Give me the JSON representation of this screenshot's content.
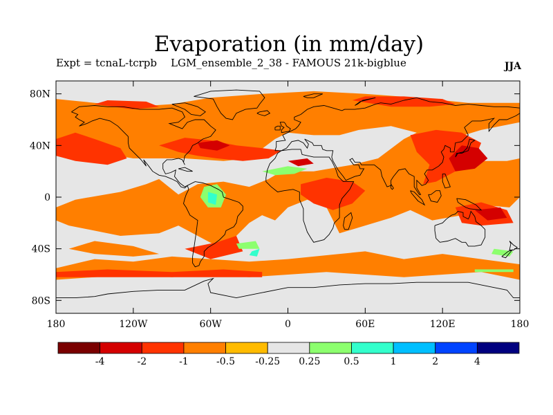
{
  "title": "Evaporation (in mm/day)",
  "experiment_label": "Expt = tcnaL-tcrpb",
  "experiment_name": "LGM_ensemble_2_38 - FAMOUS 21k-bigblue",
  "season": "JJA",
  "map": {
    "projection": "equirectangular",
    "lon_range": [
      -180,
      180
    ],
    "lat_range": [
      -90,
      90
    ],
    "lat_ticks": [
      {
        "value": 80,
        "label": "80N"
      },
      {
        "value": 40,
        "label": "40N"
      },
      {
        "value": 0,
        "label": "0"
      },
      {
        "value": -40,
        "label": "40S"
      },
      {
        "value": -80,
        "label": "80S"
      }
    ],
    "lon_ticks": [
      {
        "value": -180,
        "label": "180"
      },
      {
        "value": -120,
        "label": "120W"
      },
      {
        "value": -60,
        "label": "60W"
      },
      {
        "value": 0,
        "label": "0"
      },
      {
        "value": 60,
        "label": "60E"
      },
      {
        "value": 120,
        "label": "120E"
      },
      {
        "value": 180,
        "label": "180"
      }
    ],
    "background_color": "#e6e6e6",
    "field": [
      {
        "level": -0.5,
        "polys": [
          [
            [
              -180,
              76
            ],
            [
              -150,
              73
            ],
            [
              -120,
              70
            ],
            [
              -90,
              72
            ],
            [
              -60,
              77
            ],
            [
              -20,
              80
            ],
            [
              20,
              82
            ],
            [
              60,
              80
            ],
            [
              100,
              77
            ],
            [
              140,
              73
            ],
            [
              180,
              73
            ],
            [
              180,
              58
            ],
            [
              150,
              52
            ],
            [
              130,
              46
            ],
            [
              125,
              35
            ],
            [
              140,
              28
            ],
            [
              170,
              28
            ],
            [
              180,
              30
            ],
            [
              180,
              0
            ],
            [
              172,
              -8
            ],
            [
              150,
              -6
            ],
            [
              135,
              -14
            ],
            [
              112,
              -18
            ],
            [
              95,
              -10
            ],
            [
              80,
              -16
            ],
            [
              60,
              -22
            ],
            [
              40,
              -28
            ],
            [
              30,
              -8
            ],
            [
              15,
              -2
            ],
            [
              0,
              -8
            ],
            [
              -10,
              -18
            ],
            [
              -20,
              -14
            ],
            [
              -30,
              -20
            ],
            [
              -40,
              -30
            ],
            [
              -55,
              -38
            ],
            [
              -70,
              -30
            ],
            [
              -85,
              -22
            ],
            [
              -100,
              -28
            ],
            [
              -130,
              -30
            ],
            [
              -150,
              -26
            ],
            [
              -170,
              -22
            ],
            [
              -180,
              -18
            ],
            [
              -180,
              -8
            ],
            [
              -165,
              -2
            ],
            [
              -130,
              4
            ],
            [
              -110,
              10
            ],
            [
              -100,
              14
            ],
            [
              -85,
              2
            ],
            [
              -70,
              10
            ],
            [
              -50,
              12
            ],
            [
              -30,
              8
            ],
            [
              -15,
              14
            ],
            [
              -5,
              20
            ],
            [
              20,
              20
            ],
            [
              50,
              25
            ],
            [
              70,
              30
            ],
            [
              90,
              45
            ],
            [
              100,
              50
            ],
            [
              80,
              55
            ],
            [
              55,
              52
            ],
            [
              40,
              48
            ],
            [
              20,
              48
            ],
            [
              0,
              50
            ],
            [
              -10,
              45
            ],
            [
              -30,
              30
            ],
            [
              -50,
              28
            ],
            [
              -80,
              30
            ],
            [
              -120,
              30
            ],
            [
              -150,
              35
            ],
            [
              -180,
              40
            ]
          ]
        ]
      },
      {
        "level": -0.5,
        "polys": [
          [
            [
              -180,
              -55
            ],
            [
              -150,
              -48
            ],
            [
              -120,
              -50
            ],
            [
              -90,
              -46
            ],
            [
              -60,
              -48
            ],
            [
              -30,
              -50
            ],
            [
              0,
              -48
            ],
            [
              30,
              -45
            ],
            [
              60,
              -42
            ],
            [
              90,
              -48
            ],
            [
              120,
              -44
            ],
            [
              150,
              -48
            ],
            [
              180,
              -52
            ],
            [
              180,
              -64
            ],
            [
              150,
              -58
            ],
            [
              120,
              -60
            ],
            [
              90,
              -62
            ],
            [
              60,
              -60
            ],
            [
              30,
              -58
            ],
            [
              0,
              -60
            ],
            [
              -30,
              -62
            ],
            [
              -60,
              -60
            ],
            [
              -90,
              -62
            ],
            [
              -120,
              -60
            ],
            [
              -150,
              -62
            ],
            [
              -180,
              -64
            ]
          ]
        ]
      },
      {
        "level": -0.5,
        "polys": [
          [
            [
              -150,
              -34
            ],
            [
              -120,
              -38
            ],
            [
              -100,
              -44
            ],
            [
              -120,
              -46
            ],
            [
              -150,
              -44
            ],
            [
              -170,
              -40
            ]
          ]
        ]
      },
      {
        "level": -1,
        "polys": [
          [
            [
              -165,
              50
            ],
            [
              -150,
              45
            ],
            [
              -130,
              38
            ],
            [
              -125,
              30
            ],
            [
              -140,
              25
            ],
            [
              -165,
              28
            ],
            [
              -180,
              32
            ],
            [
              -180,
              45
            ]
          ]
        ]
      },
      {
        "level": -1,
        "polys": [
          [
            [
              -100,
              40
            ],
            [
              -80,
              46
            ],
            [
              -60,
              44
            ],
            [
              -40,
              40
            ],
            [
              -20,
              38
            ],
            [
              -5,
              36
            ],
            [
              -15,
              30
            ],
            [
              -35,
              28
            ],
            [
              -55,
              30
            ],
            [
              -70,
              32
            ],
            [
              -85,
              35
            ]
          ]
        ]
      },
      {
        "level": -1,
        "polys": [
          [
            [
              -150,
              72
            ],
            [
              -120,
              68
            ],
            [
              -100,
              70
            ],
            [
              -110,
              74
            ],
            [
              -140,
              75
            ]
          ]
        ]
      },
      {
        "level": -1,
        "polys": [
          [
            [
              50,
              75
            ],
            [
              80,
              70
            ],
            [
              110,
              70
            ],
            [
              130,
              72
            ],
            [
              120,
              76
            ],
            [
              90,
              78
            ],
            [
              60,
              78
            ]
          ]
        ]
      },
      {
        "level": -1,
        "polys": [
          [
            [
              95,
              48
            ],
            [
              115,
              52
            ],
            [
              135,
              50
            ],
            [
              150,
              42
            ],
            [
              145,
              30
            ],
            [
              130,
              20
            ],
            [
              115,
              12
            ],
            [
              105,
              10
            ],
            [
              110,
              25
            ],
            [
              100,
              35
            ]
          ]
        ]
      },
      {
        "level": -1,
        "polys": [
          [
            [
              10,
              10
            ],
            [
              30,
              15
            ],
            [
              50,
              12
            ],
            [
              60,
              5
            ],
            [
              50,
              -5
            ],
            [
              35,
              -10
            ],
            [
              20,
              -5
            ],
            [
              10,
              2
            ]
          ]
        ]
      },
      {
        "level": -1,
        "polys": [
          [
            [
              -80,
              -40
            ],
            [
              -55,
              -35
            ],
            [
              -40,
              -30
            ],
            [
              -35,
              -42
            ],
            [
              -60,
              -48
            ]
          ]
        ]
      },
      {
        "level": -1,
        "polys": [
          [
            [
              -180,
              -58
            ],
            [
              -140,
              -56
            ],
            [
              -90,
              -58
            ],
            [
              -50,
              -56
            ],
            [
              -20,
              -58
            ],
            [
              -20,
              -62
            ],
            [
              -60,
              -62
            ],
            [
              -100,
              -62
            ],
            [
              -150,
              -62
            ],
            [
              -180,
              -62
            ]
          ]
        ]
      },
      {
        "level": -1,
        "polys": [
          [
            [
              130,
              -8
            ],
            [
              150,
              -4
            ],
            [
              170,
              -10
            ],
            [
              175,
              -20
            ],
            [
              150,
              -22
            ],
            [
              135,
              -20
            ]
          ]
        ]
      },
      {
        "level": -2,
        "polys": [
          [
            [
              130,
              20
            ],
            [
              145,
              22
            ],
            [
              155,
              30
            ],
            [
              148,
              38
            ],
            [
              135,
              40
            ],
            [
              125,
              30
            ]
          ]
        ]
      },
      {
        "level": -2,
        "polys": [
          [
            [
              -70,
              42
            ],
            [
              -55,
              44
            ],
            [
              -45,
              40
            ],
            [
              -55,
              36
            ],
            [
              -68,
              38
            ]
          ]
        ]
      },
      {
        "level": -2,
        "polys": [
          [
            [
              145,
              -10
            ],
            [
              165,
              -8
            ],
            [
              170,
              -16
            ],
            [
              155,
              -18
            ]
          ]
        ]
      },
      {
        "level": -2,
        "polys": [
          [
            [
              0,
              28
            ],
            [
              15,
              30
            ],
            [
              20,
              26
            ],
            [
              8,
              24
            ]
          ]
        ]
      },
      {
        "level": 0.5,
        "polys": [
          [
            [
              -65,
              8
            ],
            [
              -55,
              10
            ],
            [
              -48,
              2
            ],
            [
              -52,
              -8
            ],
            [
              -62,
              -8
            ],
            [
              -68,
              0
            ]
          ]
        ]
      },
      {
        "level": 0.5,
        "polys": [
          [
            [
              -20,
              20
            ],
            [
              0,
              24
            ],
            [
              15,
              22
            ],
            [
              5,
              18
            ],
            [
              -10,
              17
            ]
          ]
        ]
      },
      {
        "level": 0.5,
        "polys": [
          [
            [
              160,
              -40
            ],
            [
              175,
              -42
            ],
            [
              172,
              -46
            ],
            [
              158,
              -44
            ]
          ]
        ]
      },
      {
        "level": 0.5,
        "polys": [
          [
            [
              -40,
              -36
            ],
            [
              -25,
              -34
            ],
            [
              -22,
              -40
            ],
            [
              -38,
              -40
            ]
          ]
        ]
      },
      {
        "level": 0.5,
        "polys": [
          [
            [
              145,
              -56
            ],
            [
              175,
              -56
            ],
            [
              175,
              -58
            ],
            [
              145,
              -58
            ]
          ]
        ]
      },
      {
        "level": 1,
        "polys": [
          [
            [
              -62,
              4
            ],
            [
              -55,
              2
            ],
            [
              -56,
              -6
            ],
            [
              -62,
              -4
            ]
          ]
        ]
      },
      {
        "level": 1,
        "polys": [
          [
            [
              -28,
              -42
            ],
            [
              -22,
              -40
            ],
            [
              -24,
              -46
            ],
            [
              -30,
              -45
            ]
          ]
        ]
      }
    ]
  },
  "colorbar": {
    "levels": [
      "-4",
      "-2",
      "-1",
      "-0.5",
      "-0.25",
      "0.25",
      "0.5",
      "1",
      "2",
      "4"
    ],
    "colors": [
      "#7a0000",
      "#d40000",
      "#ff3300",
      "#ff7f00",
      "#ffbb00",
      "#e6e6e6",
      "#8cff6e",
      "#33ffcc",
      "#00bfff",
      "#0044ff",
      "#00007f"
    ]
  },
  "legend_colors": {
    "-4": "#7a0000",
    "-2": "#d40000",
    "-1": "#ff3300",
    "-0.5": "#ff7f00",
    "-0.25": "#ffbb00",
    "0.5": "#8cff6e",
    "1": "#33ffcc"
  }
}
